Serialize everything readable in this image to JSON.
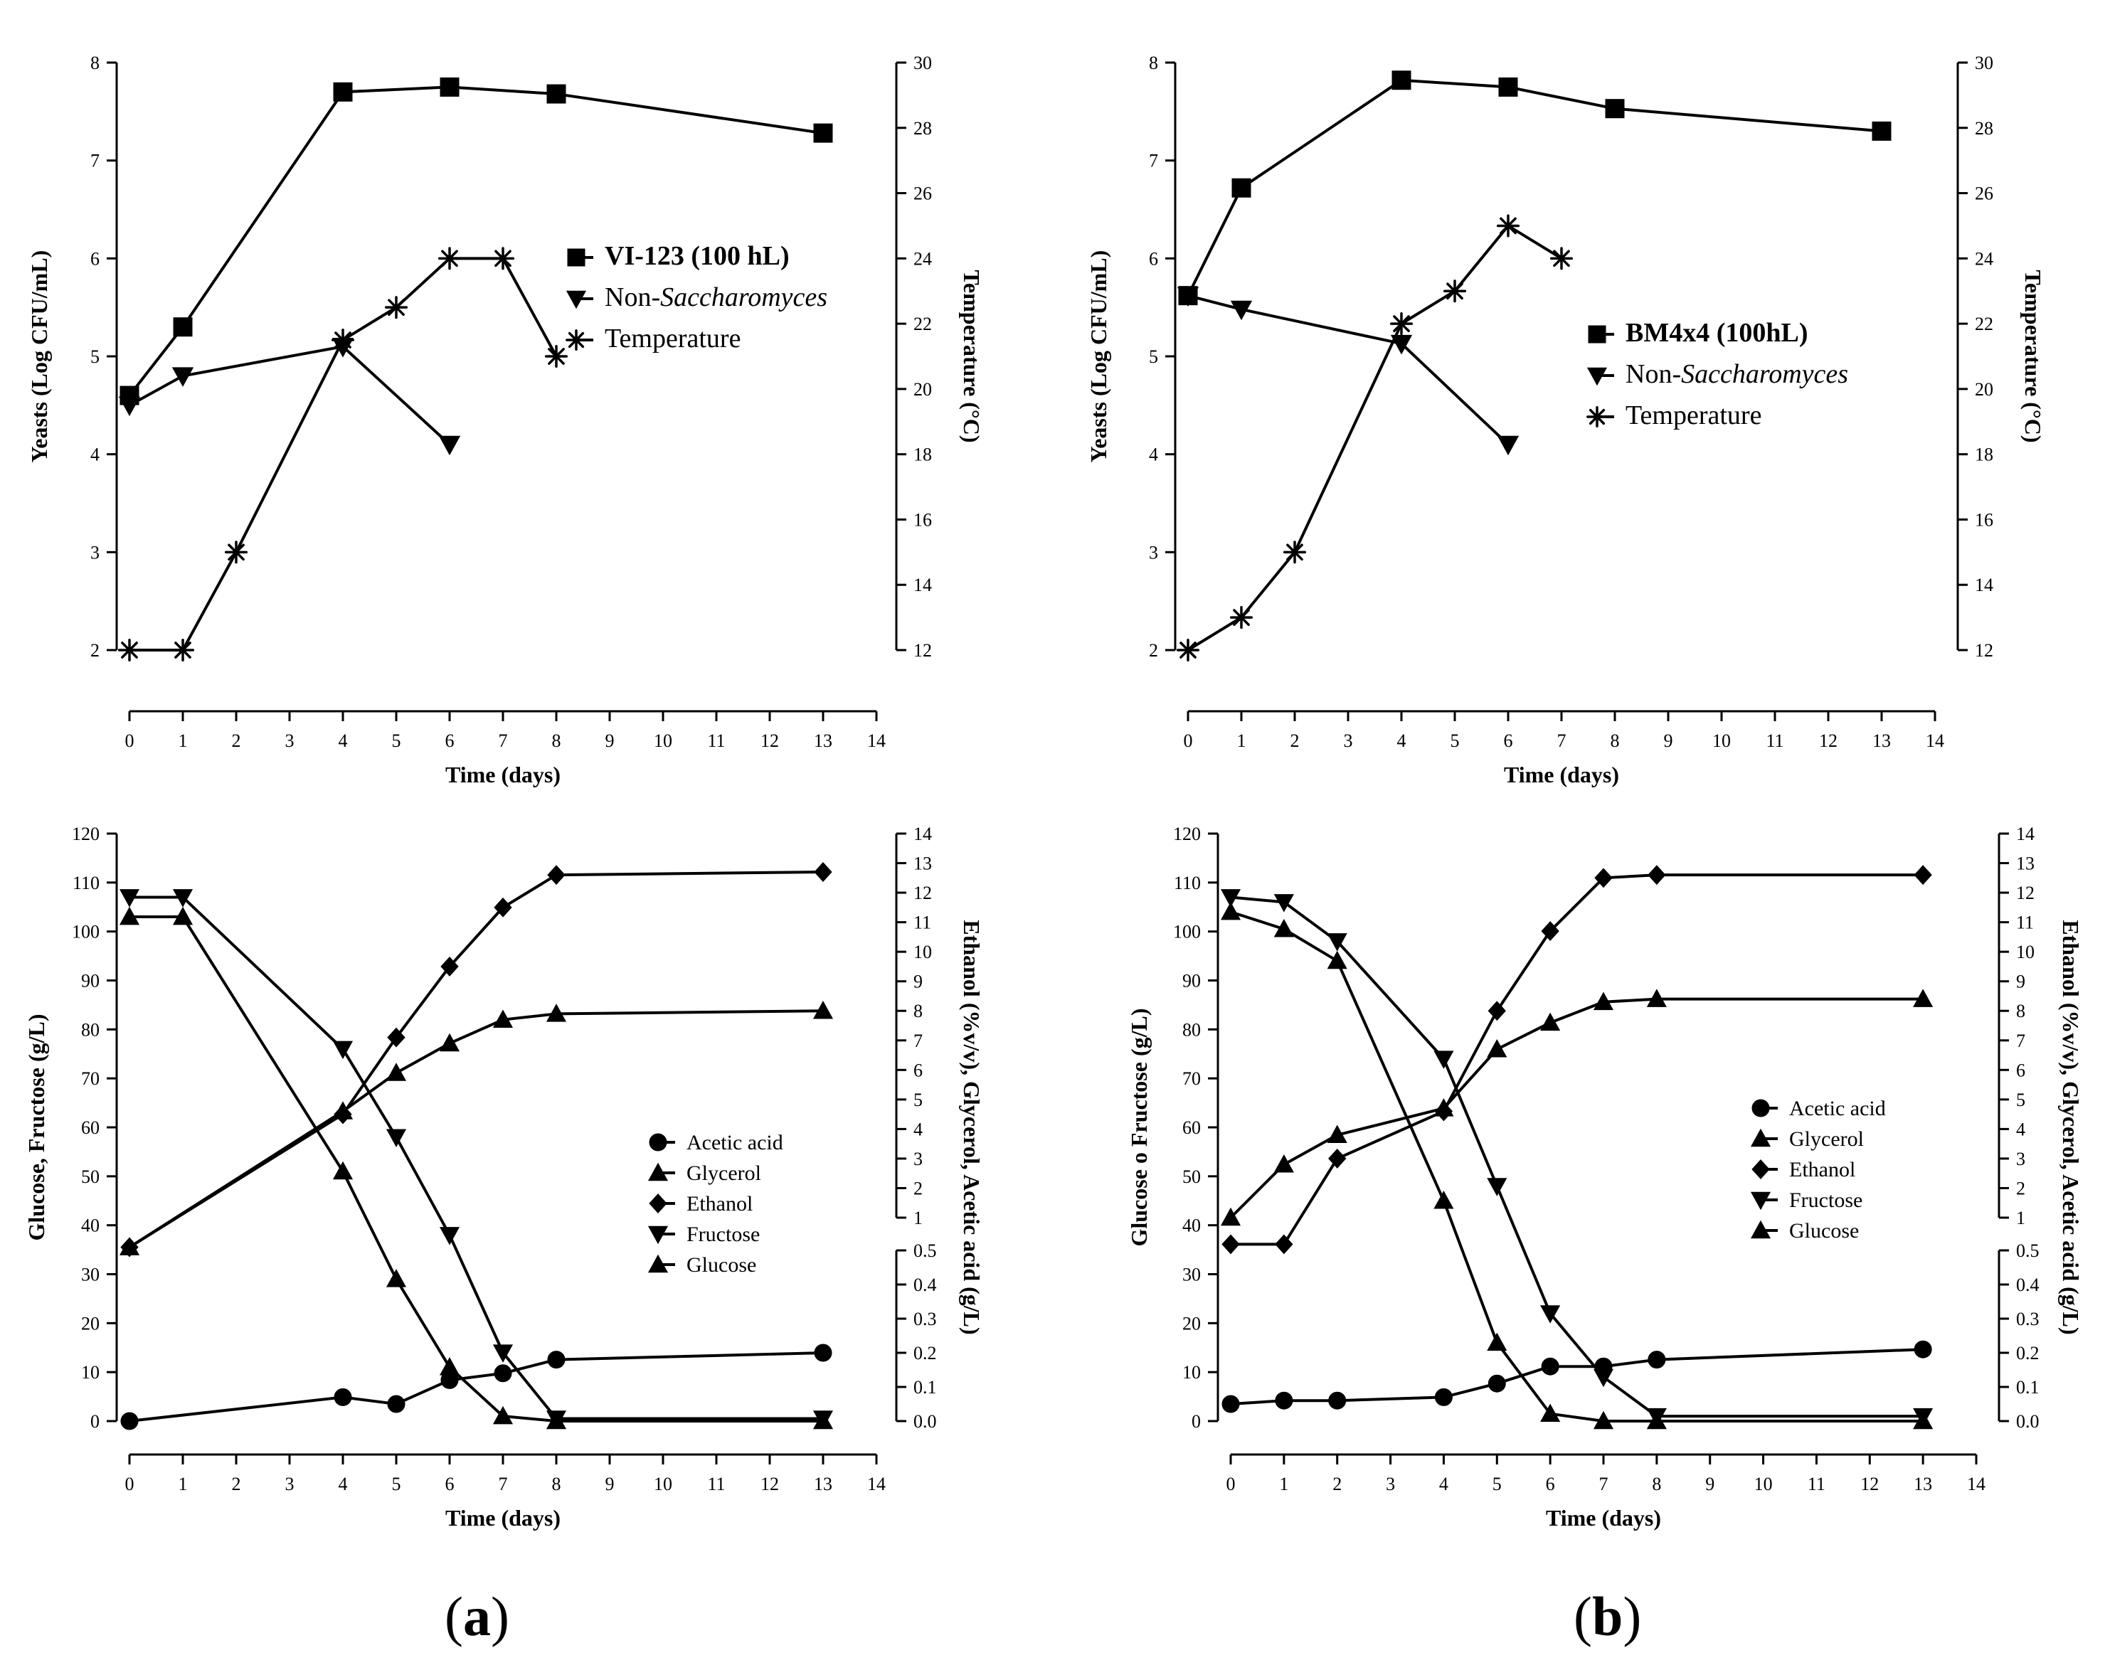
{
  "panel_labels": {
    "a": "a",
    "b": "b"
  },
  "styles": {
    "ink": "#000000",
    "background": "#ffffff"
  },
  "chart_data": [
    {
      "id": "yeast-a",
      "type": "line",
      "xlabel": "Time (days)",
      "ylabel": "Yeasts (Log CFU/mL)",
      "y2label": "Temperature (°C)",
      "xlim": [
        0,
        14
      ],
      "ylim": [
        2,
        8
      ],
      "y2lim": [
        12,
        30
      ],
      "xticks": [
        0,
        1,
        2,
        3,
        4,
        5,
        6,
        7,
        8,
        9,
        10,
        11,
        12,
        13,
        14
      ],
      "yticks": [
        2,
        3,
        4,
        5,
        6,
        7,
        8
      ],
      "y2ticks": [
        12,
        14,
        16,
        18,
        20,
        22,
        24,
        26,
        28,
        30
      ],
      "legend_position": "center-right",
      "series": [
        {
          "name": "VI-123 (100 hL)",
          "bold": true,
          "marker": "square",
          "axis": "left",
          "x": [
            0,
            1,
            4,
            6,
            8,
            13
          ],
          "values": [
            4.6,
            5.3,
            7.7,
            7.75,
            7.68,
            7.28
          ]
        },
        {
          "name": "Non-Saccharomyces",
          "name_prefix": "Non-",
          "name_italic": "Saccharomyces",
          "marker": "triangle-down",
          "axis": "left",
          "x": [
            0,
            1,
            4,
            6
          ],
          "values": [
            4.5,
            4.8,
            5.1,
            4.1
          ]
        },
        {
          "name": "Temperature",
          "marker": "asterisk",
          "axis": "right",
          "x": [
            0,
            1,
            2,
            4,
            5,
            6,
            7,
            8
          ],
          "values": [
            12,
            12,
            15,
            21.5,
            22.5,
            24,
            24,
            21
          ]
        }
      ]
    },
    {
      "id": "yeast-b",
      "type": "line",
      "xlabel": "Time (days)",
      "ylabel": "Yeasts (Log CFU/mL)",
      "y2label": "Temperature (°C)",
      "xlim": [
        0,
        14
      ],
      "ylim": [
        2,
        8
      ],
      "y2lim": [
        12,
        30
      ],
      "xticks": [
        0,
        1,
        2,
        3,
        4,
        5,
        6,
        7,
        8,
        9,
        10,
        11,
        12,
        13,
        14
      ],
      "yticks": [
        2,
        3,
        4,
        5,
        6,
        7,
        8
      ],
      "y2ticks": [
        12,
        14,
        16,
        18,
        20,
        22,
        24,
        26,
        28,
        30
      ],
      "legend_position": "center-right",
      "series": [
        {
          "name": "BM4x4 (100hL)",
          "bold": true,
          "marker": "square",
          "axis": "left",
          "x": [
            0,
            1,
            4,
            6,
            8,
            13
          ],
          "values": [
            5.62,
            6.72,
            7.82,
            7.75,
            7.53,
            7.3
          ]
        },
        {
          "name": "Non-Saccharomyces",
          "name_prefix": "Non-",
          "name_italic": "Saccharomyces",
          "marker": "triangle-down",
          "axis": "left",
          "x": [
            0,
            1,
            4,
            6
          ],
          "values": [
            5.62,
            5.48,
            5.13,
            4.1
          ]
        },
        {
          "name": "Temperature",
          "marker": "asterisk",
          "axis": "right",
          "x": [
            0,
            1,
            2,
            4,
            5,
            6,
            7
          ],
          "values": [
            12,
            13,
            15,
            22,
            23,
            25,
            24
          ]
        }
      ]
    },
    {
      "id": "sugars-a",
      "type": "line",
      "xlabel": "Time (days)",
      "ylabel": "Glucose, Fructose (g/L)",
      "y2label": "Ethanol (%v/v), Glycerol, Acetic acid (g/L)",
      "xlim": [
        0,
        14
      ],
      "ylim": [
        0,
        120
      ],
      "y2upper_lim": [
        1,
        14
      ],
      "y2lower_lim": [
        0,
        0.5
      ],
      "xticks": [
        0,
        1,
        2,
        3,
        4,
        5,
        6,
        7,
        8,
        9,
        10,
        11,
        12,
        13,
        14
      ],
      "yticks": [
        0,
        10,
        20,
        30,
        40,
        50,
        60,
        70,
        80,
        90,
        100,
        110,
        120
      ],
      "y2upper_ticks": [
        1,
        2,
        3,
        4,
        5,
        6,
        7,
        8,
        9,
        10,
        11,
        12,
        13,
        14
      ],
      "y2lower_ticks": [
        "0.0",
        "0.1",
        "0.2",
        "0.3",
        "0.4",
        "0.5"
      ],
      "legend_position": "center-right",
      "series": [
        {
          "name": "Acetic acid",
          "marker": "circle",
          "axis": "right-lower",
          "x": [
            0,
            4,
            5,
            6,
            7,
            8,
            13
          ],
          "values": [
            0.0,
            0.07,
            0.05,
            0.12,
            0.14,
            0.18,
            0.2
          ]
        },
        {
          "name": "Glycerol",
          "marker": "triangle-up",
          "axis": "right-upper",
          "x": [
            0,
            4,
            5,
            6,
            7,
            8,
            13
          ],
          "values": [
            0.0,
            4.6,
            5.9,
            6.9,
            7.7,
            7.9,
            8.0
          ]
        },
        {
          "name": "Ethanol",
          "marker": "diamond",
          "axis": "right-upper",
          "x": [
            0,
            4,
            5,
            6,
            7,
            8,
            13
          ],
          "values": [
            0.0,
            4.5,
            7.1,
            9.5,
            11.5,
            12.6,
            12.7
          ]
        },
        {
          "name": "Fructose",
          "marker": "triangle-down",
          "axis": "left",
          "x": [
            0,
            1,
            4,
            5,
            6,
            7,
            8,
            13
          ],
          "values": [
            107,
            107,
            76,
            58,
            38,
            14,
            0.5,
            0.5
          ]
        },
        {
          "name": "Glucose",
          "marker": "triangle-up",
          "axis": "left",
          "x": [
            0,
            1,
            4,
            5,
            6,
            7,
            8,
            13
          ],
          "values": [
            103,
            103,
            51,
            29,
            11,
            1,
            0,
            0
          ]
        }
      ]
    },
    {
      "id": "sugars-b",
      "type": "line",
      "xlabel": "Time (days)",
      "ylabel": "Glucose o Fructose (g/L)",
      "y2label": "Ethanol (%v/v), Glycerol, Acetic acid (g/L)",
      "xlim": [
        0,
        14
      ],
      "ylim": [
        0,
        120
      ],
      "y2upper_lim": [
        1,
        14
      ],
      "y2lower_lim": [
        0,
        0.5
      ],
      "xticks": [
        0,
        1,
        2,
        3,
        4,
        5,
        6,
        7,
        8,
        9,
        10,
        11,
        12,
        13,
        14
      ],
      "yticks": [
        0,
        10,
        20,
        30,
        40,
        50,
        60,
        70,
        80,
        90,
        100,
        110,
        120
      ],
      "y2upper_ticks": [
        1,
        2,
        3,
        4,
        5,
        6,
        7,
        8,
        9,
        10,
        11,
        12,
        13,
        14
      ],
      "y2lower_ticks": [
        "0.0",
        "0.1",
        "0.2",
        "0.3",
        "0.4",
        "0.5"
      ],
      "legend_position": "center-right",
      "series": [
        {
          "name": "Acetic acid",
          "marker": "circle",
          "axis": "right-lower",
          "x": [
            0,
            1,
            2,
            4,
            5,
            6,
            7,
            8,
            13
          ],
          "values": [
            0.05,
            0.06,
            0.06,
            0.07,
            0.11,
            0.16,
            0.16,
            0.18,
            0.21
          ]
        },
        {
          "name": "Glycerol",
          "marker": "triangle-up",
          "axis": "right-upper",
          "x": [
            0,
            1,
            2,
            4,
            5,
            6,
            7,
            8,
            13
          ],
          "values": [
            1.0,
            2.8,
            3.8,
            4.7,
            6.7,
            7.6,
            8.3,
            8.4,
            8.4
          ]
        },
        {
          "name": "Ethanol",
          "marker": "diamond",
          "axis": "right-upper",
          "x": [
            0,
            1,
            2,
            4,
            5,
            6,
            7,
            8,
            13
          ],
          "values": [
            0.1,
            0.1,
            3.0,
            4.6,
            8.0,
            10.7,
            12.5,
            12.6,
            12.6
          ]
        },
        {
          "name": "Fructose",
          "marker": "triangle-down",
          "axis": "left",
          "x": [
            0,
            1,
            2,
            4,
            5,
            6,
            7,
            8,
            13
          ],
          "values": [
            107,
            106,
            98,
            74,
            48,
            22,
            9,
            1,
            1
          ]
        },
        {
          "name": "Glucose",
          "marker": "triangle-up",
          "axis": "left",
          "x": [
            0,
            1,
            2,
            4,
            5,
            6,
            7,
            8,
            13
          ],
          "values": [
            104,
            100.5,
            94,
            45,
            16,
            1.5,
            0,
            0,
            0
          ]
        }
      ]
    }
  ]
}
